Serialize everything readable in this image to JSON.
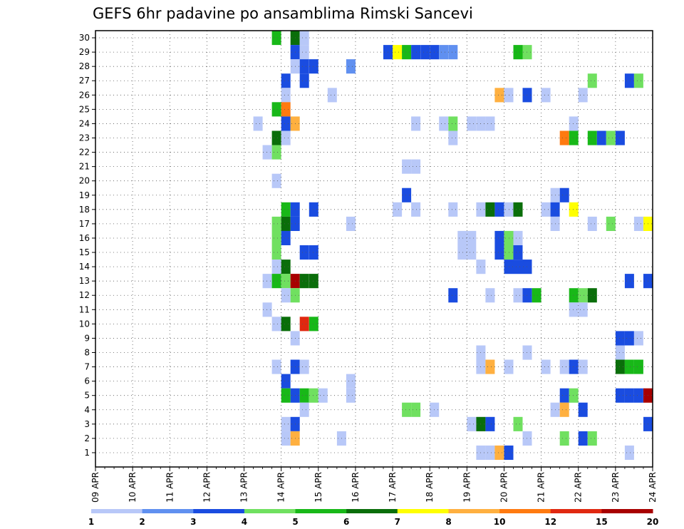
{
  "chart_data": {
    "type": "heatmap",
    "title": "GEFS 6hr padavine po ansamblima Rimski Sancevi",
    "x_tick_labels": [
      "09 APR",
      "10 APR",
      "11 APR",
      "12 APR",
      "13 APR",
      "14 APR",
      "15 APR",
      "16 APR",
      "17 APR",
      "18 APR",
      "19 APR",
      "20 APR",
      "21 APR",
      "22 APR",
      "23 APR",
      "24 APR"
    ],
    "x_range_days": [
      0,
      15
    ],
    "y_tick_labels": [
      "1",
      "2",
      "3",
      "4",
      "5",
      "6",
      "7",
      "8",
      "9",
      "10",
      "11",
      "12",
      "13",
      "14",
      "15",
      "16",
      "17",
      "18",
      "19",
      "20",
      "21",
      "22",
      "23",
      "24",
      "25",
      "26",
      "27",
      "28",
      "29",
      "30"
    ],
    "y_range": [
      0,
      30
    ],
    "grid": true,
    "colorbar": {
      "labels": [
        "1",
        "2",
        "3",
        "4",
        "5",
        "6",
        "7",
        "8",
        "10",
        "12",
        "15",
        "20"
      ],
      "colors": [
        "#b8c8f8",
        "#6090f0",
        "#1a4ce0",
        "#70e060",
        "#18b818",
        "#0a6e0a",
        "#ffff00",
        "#ffb040",
        "#ff7a10",
        "#e02810",
        "#a80000"
      ]
    },
    "cells": [
      {
        "m": 30,
        "d": 4.75,
        "v": 5
      },
      {
        "m": 30,
        "d": 5.25,
        "v": 6
      },
      {
        "m": 30,
        "d": 5.5,
        "v": 1
      },
      {
        "m": 29,
        "d": 5.25,
        "v": 3
      },
      {
        "m": 29,
        "d": 5.5,
        "v": 1
      },
      {
        "m": 29,
        "d": 7.75,
        "v": 3
      },
      {
        "m": 29,
        "d": 8.0,
        "v": 7
      },
      {
        "m": 29,
        "d": 8.25,
        "v": 5
      },
      {
        "m": 29,
        "d": 8.5,
        "v": 3
      },
      {
        "m": 29,
        "d": 8.75,
        "v": 3
      },
      {
        "m": 29,
        "d": 9.0,
        "v": 3
      },
      {
        "m": 29,
        "d": 9.25,
        "v": 2
      },
      {
        "m": 29,
        "d": 9.5,
        "v": 2
      },
      {
        "m": 29,
        "d": 11.25,
        "v": 5
      },
      {
        "m": 29,
        "d": 11.5,
        "v": 4
      },
      {
        "m": 28,
        "d": 5.25,
        "v": 1
      },
      {
        "m": 28,
        "d": 5.5,
        "v": 3
      },
      {
        "m": 28,
        "d": 5.75,
        "v": 3
      },
      {
        "m": 28,
        "d": 6.75,
        "v": 2
      },
      {
        "m": 27,
        "d": 5.0,
        "v": 3
      },
      {
        "m": 27,
        "d": 5.5,
        "v": 3
      },
      {
        "m": 27,
        "d": 13.25,
        "v": 4
      },
      {
        "m": 27,
        "d": 14.25,
        "v": 3
      },
      {
        "m": 27,
        "d": 14.5,
        "v": 4
      },
      {
        "m": 26,
        "d": 5.0,
        "v": 1
      },
      {
        "m": 26,
        "d": 6.25,
        "v": 1
      },
      {
        "m": 26,
        "d": 10.75,
        "v": 9
      },
      {
        "m": 26,
        "d": 11.0,
        "v": 1
      },
      {
        "m": 26,
        "d": 11.5,
        "v": 3
      },
      {
        "m": 26,
        "d": 12.0,
        "v": 1
      },
      {
        "m": 26,
        "d": 13.0,
        "v": 1
      },
      {
        "m": 25,
        "d": 4.75,
        "v": 5
      },
      {
        "m": 25,
        "d": 5.0,
        "v": 11
      },
      {
        "m": 24,
        "d": 4.25,
        "v": 1
      },
      {
        "m": 24,
        "d": 5.0,
        "v": 3
      },
      {
        "m": 24,
        "d": 5.25,
        "v": 8
      },
      {
        "m": 24,
        "d": 8.5,
        "v": 1
      },
      {
        "m": 24,
        "d": 9.25,
        "v": 1
      },
      {
        "m": 24,
        "d": 9.5,
        "v": 4
      },
      {
        "m": 24,
        "d": 10.0,
        "v": 1
      },
      {
        "m": 24,
        "d": 10.25,
        "v": 1
      },
      {
        "m": 24,
        "d": 10.5,
        "v": 1
      },
      {
        "m": 24,
        "d": 12.75,
        "v": 1
      },
      {
        "m": 23,
        "d": 4.75,
        "v": 6
      },
      {
        "m": 23,
        "d": 5.0,
        "v": 1
      },
      {
        "m": 23,
        "d": 9.5,
        "v": 1
      },
      {
        "m": 23,
        "d": 12.5,
        "v": 10
      },
      {
        "m": 23,
        "d": 12.75,
        "v": 5
      },
      {
        "m": 23,
        "d": 13.25,
        "v": 5
      },
      {
        "m": 23,
        "d": 13.5,
        "v": 3
      },
      {
        "m": 23,
        "d": 13.75,
        "v": 4
      },
      {
        "m": 23,
        "d": 14.0,
        "v": 3
      },
      {
        "m": 22,
        "d": 4.5,
        "v": 1
      },
      {
        "m": 22,
        "d": 4.75,
        "v": 4
      },
      {
        "m": 21,
        "d": 8.25,
        "v": 1
      },
      {
        "m": 21,
        "d": 8.5,
        "v": 1
      },
      {
        "m": 20,
        "d": 4.75,
        "v": 1
      },
      {
        "m": 19,
        "d": 8.25,
        "v": 3
      },
      {
        "m": 19,
        "d": 12.25,
        "v": 1
      },
      {
        "m": 19,
        "d": 12.5,
        "v": 3
      },
      {
        "m": 18,
        "d": 5.0,
        "v": 5
      },
      {
        "m": 18,
        "d": 5.25,
        "v": 3
      },
      {
        "m": 18,
        "d": 5.75,
        "v": 3
      },
      {
        "m": 18,
        "d": 8.0,
        "v": 1
      },
      {
        "m": 18,
        "d": 8.5,
        "v": 1
      },
      {
        "m": 18,
        "d": 9.5,
        "v": 1
      },
      {
        "m": 18,
        "d": 10.25,
        "v": 1
      },
      {
        "m": 18,
        "d": 10.5,
        "v": 6
      },
      {
        "m": 18,
        "d": 10.75,
        "v": 3
      },
      {
        "m": 18,
        "d": 11.0,
        "v": 1
      },
      {
        "m": 18,
        "d": 11.25,
        "v": 6
      },
      {
        "m": 18,
        "d": 12.0,
        "v": 1
      },
      {
        "m": 18,
        "d": 12.25,
        "v": 3
      },
      {
        "m": 18,
        "d": 12.75,
        "v": 7
      },
      {
        "m": 17,
        "d": 4.75,
        "v": 4
      },
      {
        "m": 17,
        "d": 5.0,
        "v": 6
      },
      {
        "m": 17,
        "d": 5.25,
        "v": 3
      },
      {
        "m": 17,
        "d": 6.75,
        "v": 1
      },
      {
        "m": 17,
        "d": 12.25,
        "v": 1
      },
      {
        "m": 17,
        "d": 13.25,
        "v": 1
      },
      {
        "m": 17,
        "d": 13.75,
        "v": 4
      },
      {
        "m": 17,
        "d": 14.5,
        "v": 1
      },
      {
        "m": 17,
        "d": 14.75,
        "v": 7
      },
      {
        "m": 16,
        "d": 4.75,
        "v": 4
      },
      {
        "m": 16,
        "d": 5.0,
        "v": 3
      },
      {
        "m": 16,
        "d": 9.75,
        "v": 1
      },
      {
        "m": 16,
        "d": 10.0,
        "v": 1
      },
      {
        "m": 16,
        "d": 10.75,
        "v": 3
      },
      {
        "m": 16,
        "d": 11.0,
        "v": 4
      },
      {
        "m": 16,
        "d": 11.25,
        "v": 1
      },
      {
        "m": 15,
        "d": 4.75,
        "v": 4
      },
      {
        "m": 15,
        "d": 5.5,
        "v": 3
      },
      {
        "m": 15,
        "d": 5.75,
        "v": 3
      },
      {
        "m": 15,
        "d": 9.75,
        "v": 1
      },
      {
        "m": 15,
        "d": 10.0,
        "v": 1
      },
      {
        "m": 15,
        "d": 10.75,
        "v": 3
      },
      {
        "m": 15,
        "d": 11.0,
        "v": 4
      },
      {
        "m": 15,
        "d": 11.25,
        "v": 3
      },
      {
        "m": 14,
        "d": 4.75,
        "v": 1
      },
      {
        "m": 14,
        "d": 5.0,
        "v": 6
      },
      {
        "m": 14,
        "d": 10.25,
        "v": 1
      },
      {
        "m": 14,
        "d": 11.0,
        "v": 3
      },
      {
        "m": 14,
        "d": 11.25,
        "v": 3
      },
      {
        "m": 14,
        "d": 11.5,
        "v": 3
      },
      {
        "m": 13,
        "d": 4.5,
        "v": 1
      },
      {
        "m": 13,
        "d": 4.75,
        "v": 5
      },
      {
        "m": 13,
        "d": 5.0,
        "v": 4
      },
      {
        "m": 13,
        "d": 5.25,
        "v": 20
      },
      {
        "m": 13,
        "d": 5.5,
        "v": 6
      },
      {
        "m": 13,
        "d": 5.75,
        "v": 6
      },
      {
        "m": 13,
        "d": 14.25,
        "v": 3
      },
      {
        "m": 13,
        "d": 14.75,
        "v": 3
      },
      {
        "m": 12,
        "d": 5.0,
        "v": 1
      },
      {
        "m": 12,
        "d": 5.25,
        "v": 4
      },
      {
        "m": 12,
        "d": 9.5,
        "v": 3
      },
      {
        "m": 12,
        "d": 10.5,
        "v": 1
      },
      {
        "m": 12,
        "d": 11.25,
        "v": 1
      },
      {
        "m": 12,
        "d": 11.5,
        "v": 3
      },
      {
        "m": 12,
        "d": 11.75,
        "v": 5
      },
      {
        "m": 12,
        "d": 12.75,
        "v": 5
      },
      {
        "m": 12,
        "d": 13.0,
        "v": 4
      },
      {
        "m": 12,
        "d": 13.25,
        "v": 6
      },
      {
        "m": 11,
        "d": 4.5,
        "v": 1
      },
      {
        "m": 11,
        "d": 12.75,
        "v": 1
      },
      {
        "m": 11,
        "d": 13.0,
        "v": 1
      },
      {
        "m": 10,
        "d": 4.75,
        "v": 1
      },
      {
        "m": 10,
        "d": 5.0,
        "v": 6
      },
      {
        "m": 10,
        "d": 5.5,
        "v": 12
      },
      {
        "m": 10,
        "d": 5.75,
        "v": 5
      },
      {
        "m": 9,
        "d": 5.25,
        "v": 1
      },
      {
        "m": 9,
        "d": 14.0,
        "v": 3
      },
      {
        "m": 9,
        "d": 14.25,
        "v": 3
      },
      {
        "m": 9,
        "d": 14.5,
        "v": 1
      },
      {
        "m": 8,
        "d": 10.25,
        "v": 1
      },
      {
        "m": 8,
        "d": 11.5,
        "v": 1
      },
      {
        "m": 8,
        "d": 14.0,
        "v": 1
      },
      {
        "m": 7,
        "d": 4.75,
        "v": 1
      },
      {
        "m": 7,
        "d": 5.25,
        "v": 3
      },
      {
        "m": 7,
        "d": 5.5,
        "v": 1
      },
      {
        "m": 7,
        "d": 10.25,
        "v": 1
      },
      {
        "m": 7,
        "d": 10.5,
        "v": 8
      },
      {
        "m": 7,
        "d": 11.0,
        "v": 1
      },
      {
        "m": 7,
        "d": 12.0,
        "v": 1
      },
      {
        "m": 7,
        "d": 12.5,
        "v": 1
      },
      {
        "m": 7,
        "d": 12.75,
        "v": 3
      },
      {
        "m": 7,
        "d": 13.0,
        "v": 1
      },
      {
        "m": 7,
        "d": 14.0,
        "v": 6
      },
      {
        "m": 7,
        "d": 14.25,
        "v": 5
      },
      {
        "m": 7,
        "d": 14.5,
        "v": 5
      },
      {
        "m": 6,
        "d": 5.0,
        "v": 3
      },
      {
        "m": 6,
        "d": 6.75,
        "v": 1
      },
      {
        "m": 5,
        "d": 5.0,
        "v": 5
      },
      {
        "m": 5,
        "d": 5.25,
        "v": 3
      },
      {
        "m": 5,
        "d": 5.5,
        "v": 5
      },
      {
        "m": 5,
        "d": 5.75,
        "v": 4
      },
      {
        "m": 5,
        "d": 6.0,
        "v": 1
      },
      {
        "m": 5,
        "d": 6.75,
        "v": 1
      },
      {
        "m": 5,
        "d": 12.5,
        "v": 3
      },
      {
        "m": 5,
        "d": 12.75,
        "v": 4
      },
      {
        "m": 5,
        "d": 14.0,
        "v": 3
      },
      {
        "m": 5,
        "d": 14.25,
        "v": 3
      },
      {
        "m": 5,
        "d": 14.5,
        "v": 3
      },
      {
        "m": 5,
        "d": 14.75,
        "v": 20
      },
      {
        "m": 4,
        "d": 5.5,
        "v": 1
      },
      {
        "m": 4,
        "d": 8.25,
        "v": 4
      },
      {
        "m": 4,
        "d": 8.5,
        "v": 4
      },
      {
        "m": 4,
        "d": 9.0,
        "v": 1
      },
      {
        "m": 4,
        "d": 12.25,
        "v": 1
      },
      {
        "m": 4,
        "d": 12.5,
        "v": 9
      },
      {
        "m": 4,
        "d": 13.0,
        "v": 3
      },
      {
        "m": 3,
        "d": 5.0,
        "v": 1
      },
      {
        "m": 3,
        "d": 5.25,
        "v": 3
      },
      {
        "m": 3,
        "d": 10.0,
        "v": 1
      },
      {
        "m": 3,
        "d": 10.25,
        "v": 6
      },
      {
        "m": 3,
        "d": 10.5,
        "v": 3
      },
      {
        "m": 3,
        "d": 11.25,
        "v": 4
      },
      {
        "m": 3,
        "d": 14.75,
        "v": 3
      },
      {
        "m": 2,
        "d": 5.0,
        "v": 1
      },
      {
        "m": 2,
        "d": 5.25,
        "v": 8
      },
      {
        "m": 2,
        "d": 6.5,
        "v": 1
      },
      {
        "m": 2,
        "d": 11.5,
        "v": 1
      },
      {
        "m": 2,
        "d": 12.5,
        "v": 4
      },
      {
        "m": 2,
        "d": 13.0,
        "v": 3
      },
      {
        "m": 2,
        "d": 13.25,
        "v": 4
      },
      {
        "m": 1,
        "d": 10.25,
        "v": 1
      },
      {
        "m": 1,
        "d": 10.5,
        "v": 1
      },
      {
        "m": 1,
        "d": 10.75,
        "v": 9
      },
      {
        "m": 1,
        "d": 11.0,
        "v": 3
      },
      {
        "m": 1,
        "d": 14.25,
        "v": 1
      }
    ]
  }
}
